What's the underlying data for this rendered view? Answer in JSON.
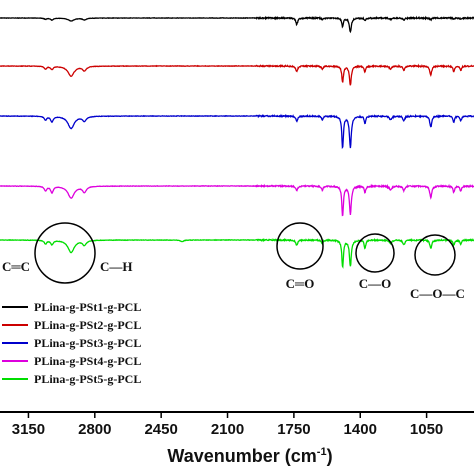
{
  "chart_data": {
    "type": "line",
    "title": "",
    "xlabel": "Wavenumber (cm",
    "xlabel_sup": "-1",
    "xlabel_close": ")",
    "ylabel": "",
    "x_reversed": true,
    "xlim": [
      3300,
      800
    ],
    "xticks": [
      {
        "value": 3150,
        "label": "3150"
      },
      {
        "value": 2800,
        "label": "2800"
      },
      {
        "value": 2450,
        "label": "2450"
      },
      {
        "value": 2100,
        "label": "2100"
      },
      {
        "value": 1750,
        "label": "1750"
      },
      {
        "value": 1400,
        "label": "1400"
      },
      {
        "value": 1050,
        "label": "1050"
      }
    ],
    "grid": false,
    "legend_position": "bottom-left",
    "series": [
      {
        "name": "PLina-g-PSt1-g-PCL",
        "color": "#000000",
        "baseline": 0,
        "peaks": [
          [
            3060,
            0.06,
            8
          ],
          [
            3026,
            0.1,
            8
          ],
          [
            2925,
            0.15,
            18
          ],
          [
            2855,
            0.09,
            12
          ],
          [
            1735,
            0.32,
            6
          ],
          [
            1600,
            0.07,
            5
          ],
          [
            1493,
            0.42,
            5
          ],
          [
            1452,
            0.7,
            6
          ],
          [
            1375,
            0.12,
            5
          ],
          [
            1240,
            0.06,
            8
          ],
          [
            1170,
            0.1,
            6
          ],
          [
            1028,
            0.09,
            6
          ],
          [
            907,
            0.06,
            5
          ],
          [
            870,
            0.05,
            5
          ]
        ]
      },
      {
        "name": "PLina-g-PSt2-g-PCL",
        "color": "#cc0000",
        "baseline": 0,
        "peaks": [
          [
            3060,
            0.14,
            8
          ],
          [
            3026,
            0.16,
            8
          ],
          [
            2925,
            0.5,
            20
          ],
          [
            2855,
            0.22,
            12
          ],
          [
            1735,
            0.28,
            6
          ],
          [
            1600,
            0.16,
            5
          ],
          [
            1493,
            0.8,
            5
          ],
          [
            1452,
            0.95,
            6
          ],
          [
            1375,
            0.3,
            5
          ],
          [
            1240,
            0.15,
            8
          ],
          [
            1170,
            0.22,
            6
          ],
          [
            1028,
            0.44,
            6
          ],
          [
            907,
            0.26,
            5
          ],
          [
            870,
            0.22,
            5
          ]
        ]
      },
      {
        "name": "PLina-g-PSt3-g-PCL",
        "color": "#0000cc",
        "baseline": 0,
        "peaks": [
          [
            3060,
            0.18,
            8
          ],
          [
            3026,
            0.28,
            8
          ],
          [
            2925,
            0.62,
            20
          ],
          [
            2855,
            0.24,
            12
          ],
          [
            1735,
            0.25,
            6
          ],
          [
            1600,
            0.18,
            5
          ],
          [
            1493,
            1.6,
            5
          ],
          [
            1452,
            1.55,
            6
          ],
          [
            1375,
            0.35,
            5
          ],
          [
            1240,
            0.18,
            8
          ],
          [
            1170,
            0.25,
            6
          ],
          [
            1028,
            0.55,
            6
          ],
          [
            907,
            0.3,
            5
          ],
          [
            870,
            0.26,
            5
          ]
        ]
      },
      {
        "name": "PLina-g-PSt4-g-PCL",
        "color": "#dd00dd",
        "baseline": 0,
        "peaks": [
          [
            3060,
            0.22,
            8
          ],
          [
            3026,
            0.32,
            8
          ],
          [
            2925,
            0.6,
            20
          ],
          [
            2855,
            0.3,
            12
          ],
          [
            1735,
            0.22,
            6
          ],
          [
            1600,
            0.2,
            5
          ],
          [
            1493,
            1.5,
            5
          ],
          [
            1452,
            1.4,
            6
          ],
          [
            1375,
            0.32,
            5
          ],
          [
            1240,
            0.18,
            8
          ],
          [
            1170,
            0.24,
            6
          ],
          [
            1028,
            0.6,
            6
          ],
          [
            907,
            0.32,
            5
          ],
          [
            870,
            0.26,
            5
          ]
        ]
      },
      {
        "name": "PLina-g-PSt5-g-PCL",
        "color": "#00dd00",
        "baseline": 0,
        "peaks": [
          [
            3060,
            0.18,
            8
          ],
          [
            3026,
            0.22,
            8
          ],
          [
            2925,
            0.62,
            20
          ],
          [
            2855,
            0.24,
            12
          ],
          [
            2340,
            0.08,
            10
          ],
          [
            1735,
            0.26,
            6
          ],
          [
            1600,
            0.18,
            5
          ],
          [
            1493,
            1.35,
            5
          ],
          [
            1452,
            1.3,
            6
          ],
          [
            1375,
            0.4,
            5
          ],
          [
            1240,
            0.16,
            8
          ],
          [
            1170,
            0.24,
            6
          ],
          [
            1028,
            0.42,
            6
          ],
          [
            907,
            0.26,
            5
          ],
          [
            870,
            0.2,
            5
          ]
        ]
      }
    ],
    "annotations": [
      {
        "text": "C═C",
        "near": 3150
      },
      {
        "text": "C—H",
        "near": 2720
      },
      {
        "text": "C═O",
        "near": 1735
      },
      {
        "text": "C—O",
        "near": 1375
      },
      {
        "text": "C—O—C",
        "near": 1030
      }
    ]
  }
}
